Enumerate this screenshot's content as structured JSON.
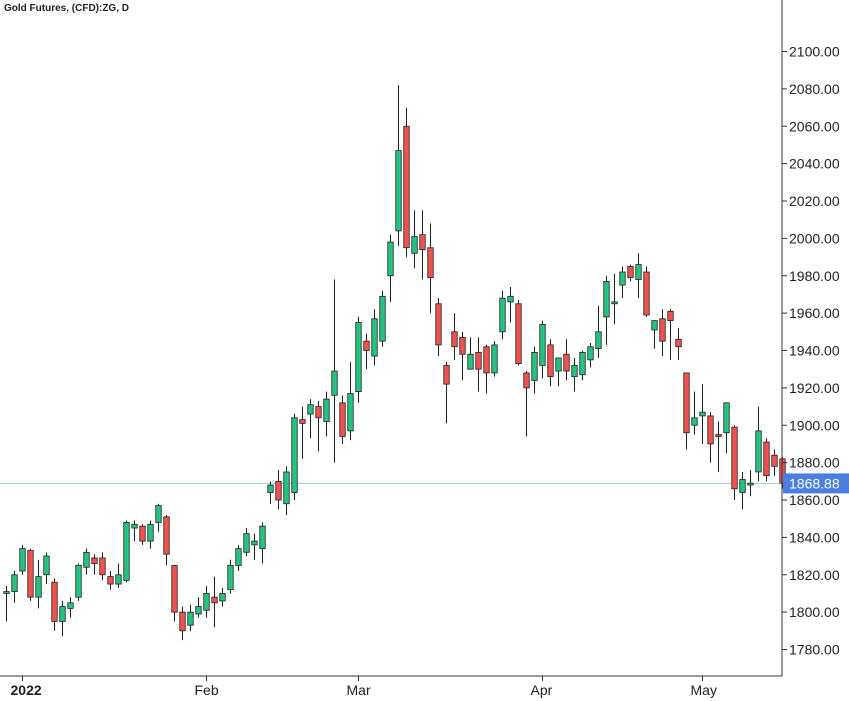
{
  "chart_data": {
    "type": "candlestick",
    "title": "Gold Futures, (CFD):ZG, D",
    "ylim": [
      1770,
      2110
    ],
    "y_ticks": [
      "1780.00",
      "1800.00",
      "1820.00",
      "1840.00",
      "1860.00",
      "1880.00",
      "1900.00",
      "1920.00",
      "1940.00",
      "1960.00",
      "1980.00",
      "2000.00",
      "2020.00",
      "2040.00",
      "2060.00",
      "2080.00",
      "2100.00"
    ],
    "x_labels": [
      {
        "label": "2022",
        "index": 2,
        "bold": true
      },
      {
        "label": "Feb",
        "index": 25,
        "bold": false
      },
      {
        "label": "Mar",
        "index": 44,
        "bold": false
      },
      {
        "label": "Apr",
        "index": 67,
        "bold": false
      },
      {
        "label": "May",
        "index": 87,
        "bold": false
      }
    ],
    "last_price": "1868.88",
    "last_price_value": 1868.88,
    "colors": {
      "up": "#26c281",
      "down": "#ef5350",
      "wick": "#222222",
      "last_line": "#a9c6df",
      "last_label_bg": "#4a7fe0",
      "axis": "#333333"
    },
    "candles": [
      [
        1810,
        1814,
        1795,
        1811
      ],
      [
        1811,
        1822,
        1805,
        1820
      ],
      [
        1822,
        1836,
        1820,
        1834
      ],
      [
        1833,
        1834,
        1806,
        1808
      ],
      [
        1808,
        1828,
        1802,
        1819
      ],
      [
        1820,
        1832,
        1815,
        1830
      ],
      [
        1816,
        1818,
        1790,
        1795
      ],
      [
        1795,
        1806,
        1787,
        1803
      ],
      [
        1802,
        1808,
        1797,
        1805
      ],
      [
        1808,
        1826,
        1806,
        1825
      ],
      [
        1824,
        1834,
        1820,
        1832
      ],
      [
        1829,
        1831,
        1820,
        1826
      ],
      [
        1829,
        1832,
        1817,
        1820
      ],
      [
        1819,
        1822,
        1812,
        1815
      ],
      [
        1815,
        1826,
        1813,
        1820
      ],
      [
        1817,
        1849,
        1816,
        1848
      ],
      [
        1845,
        1849,
        1838,
        1847
      ],
      [
        1846,
        1847,
        1836,
        1838
      ],
      [
        1838,
        1849,
        1834,
        1847
      ],
      [
        1848,
        1858,
        1843,
        1857
      ],
      [
        1851,
        1852,
        1825,
        1831
      ],
      [
        1825,
        1825,
        1795,
        1800
      ],
      [
        1800,
        1803,
        1785,
        1790
      ],
      [
        1793,
        1804,
        1790,
        1800
      ],
      [
        1799,
        1808,
        1797,
        1803
      ],
      [
        1801,
        1814,
        1797,
        1810
      ],
      [
        1808,
        1819,
        1792,
        1805
      ],
      [
        1806,
        1813,
        1803,
        1810
      ],
      [
        1812,
        1828,
        1810,
        1825
      ],
      [
        1825,
        1836,
        1822,
        1834
      ],
      [
        1832,
        1845,
        1830,
        1842
      ],
      [
        1836,
        1842,
        1828,
        1838
      ],
      [
        1834,
        1848,
        1826,
        1846
      ],
      [
        1864,
        1870,
        1858,
        1868
      ],
      [
        1870,
        1876,
        1855,
        1860
      ],
      [
        1858,
        1878,
        1852,
        1875
      ],
      [
        1864,
        1906,
        1860,
        1904
      ],
      [
        1903,
        1910,
        1882,
        1901
      ],
      [
        1906,
        1914,
        1893,
        1911
      ],
      [
        1910,
        1913,
        1886,
        1904
      ],
      [
        1902,
        1918,
        1894,
        1914
      ],
      [
        1916,
        1978,
        1880,
        1929
      ],
      [
        1912,
        1916,
        1890,
        1894
      ],
      [
        1897,
        1934,
        1892,
        1917
      ],
      [
        1918,
        1958,
        1912,
        1955
      ],
      [
        1945,
        1949,
        1930,
        1940
      ],
      [
        1937,
        1962,
        1932,
        1957
      ],
      [
        1945,
        1972,
        1942,
        1969
      ],
      [
        1980,
        2002,
        1966,
        1998
      ],
      [
        2004,
        2082,
        1996,
        2047
      ],
      [
        2060,
        2070,
        1990,
        1995
      ],
      [
        1992,
        2015,
        1984,
        2001
      ],
      [
        2002,
        2015,
        1978,
        1994
      ],
      [
        1995,
        2008,
        1960,
        1979
      ],
      [
        1965,
        1968,
        1937,
        1943
      ],
      [
        1932,
        1934,
        1901,
        1922
      ],
      [
        1950,
        1960,
        1935,
        1942
      ],
      [
        1947,
        1950,
        1924,
        1938
      ],
      [
        1930,
        1947,
        1930,
        1938
      ],
      [
        1939,
        1947,
        1918,
        1930
      ],
      [
        1942,
        1943,
        1917,
        1928
      ],
      [
        1928,
        1945,
        1926,
        1943
      ],
      [
        1950,
        1972,
        1946,
        1968
      ],
      [
        1966,
        1974,
        1955,
        1969
      ],
      [
        1965,
        1967,
        1932,
        1933
      ],
      [
        1928,
        1929,
        1894,
        1920
      ],
      [
        1924,
        1942,
        1917,
        1939
      ],
      [
        1932,
        1956,
        1925,
        1954
      ],
      [
        1943,
        1946,
        1921,
        1926
      ],
      [
        1929,
        1935,
        1921,
        1936
      ],
      [
        1938,
        1946,
        1924,
        1929
      ],
      [
        1926,
        1936,
        1918,
        1932
      ],
      [
        1927,
        1940,
        1924,
        1939
      ],
      [
        1935,
        1944,
        1931,
        1942
      ],
      [
        1941,
        1964,
        1936,
        1950
      ],
      [
        1958,
        1980,
        1943,
        1977
      ],
      [
        1965,
        1981,
        1954,
        1966
      ],
      [
        1975,
        1985,
        1968,
        1982
      ],
      [
        1985,
        1986,
        1977,
        1979
      ],
      [
        1978,
        1992,
        1968,
        1986
      ],
      [
        1982,
        1985,
        1958,
        1959
      ],
      [
        1951,
        1954,
        1941,
        1956
      ],
      [
        1957,
        1962,
        1937,
        1945
      ],
      [
        1961,
        1962,
        1935,
        1956
      ],
      [
        1946,
        1952,
        1935,
        1942
      ],
      [
        1928,
        1928,
        1887,
        1896
      ],
      [
        1900,
        1918,
        1895,
        1904
      ],
      [
        1905,
        1922,
        1890,
        1907
      ],
      [
        1905,
        1907,
        1880,
        1890
      ],
      [
        1895,
        1902,
        1875,
        1894
      ],
      [
        1896,
        1912,
        1885,
        1912
      ],
      [
        1899,
        1900,
        1860,
        1866
      ],
      [
        1864,
        1875,
        1855,
        1871
      ],
      [
        1868,
        1876,
        1862,
        1869
      ],
      [
        1875,
        1910,
        1870,
        1897
      ],
      [
        1891,
        1893,
        1870,
        1873
      ],
      [
        1884,
        1887,
        1873,
        1878
      ],
      [
        1882,
        1883,
        1866,
        1869
      ]
    ]
  }
}
